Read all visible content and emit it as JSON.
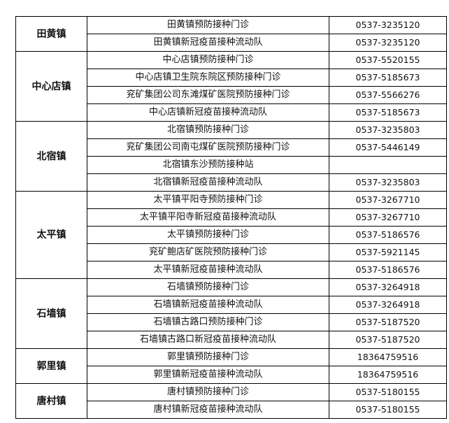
{
  "groups": [
    {
      "town": "田黄镇",
      "rows": [
        {
          "name": "田黄镇预防接种门诊",
          "phone": "0537-3235120"
        },
        {
          "name": "田黄镇新冠疫苗接种流动队",
          "phone": "0537-3235120"
        }
      ]
    },
    {
      "town": "中心店镇",
      "rows": [
        {
          "name": "中心店镇预防接种门诊",
          "phone": "0537-5520155"
        },
        {
          "name": "中心店镇卫生院东院区预防接种门诊",
          "phone": "0537-5185673"
        },
        {
          "name": "兖矿集团公司东滩煤矿医院预防接种门诊",
          "phone": "0537-5566276"
        },
        {
          "name": "中心店镇新冠疫苗接种流动队",
          "phone": "0537-5185673"
        }
      ]
    },
    {
      "town": "北宿镇",
      "rows": [
        {
          "name": "北宿镇预防接种门诊",
          "phone": "0537-3235803"
        },
        {
          "name": "兖矿集团公司南屯煤矿医院预防接种门诊",
          "phone": "0537-5446149"
        },
        {
          "name": "北宿镇东沙预防接种站",
          "phone": null
        },
        {
          "name": "北宿镇新冠疫苗接种流动队",
          "phone": "0537-3235803"
        }
      ]
    },
    {
      "town": "太平镇",
      "rows": [
        {
          "name": "太平镇平阳寺预防接种门诊",
          "phone": "0537-3267710"
        },
        {
          "name": "太平镇平阳寺新冠疫苗接种流动队",
          "phone": "0537-3267710"
        },
        {
          "name": "太平镇预防接种门诊",
          "phone": "0537-5186576"
        },
        {
          "name": "兖矿鲍店矿医院预防接种门诊",
          "phone": "0537-5921145"
        },
        {
          "name": "太平镇新冠疫苗接种流动队",
          "phone": "0537-5186576"
        }
      ]
    },
    {
      "town": "石墙镇",
      "rows": [
        {
          "name": "石墙镇预防接种门诊",
          "phone": "0537-3264918"
        },
        {
          "name": "石墙镇新冠疫苗接种流动队",
          "phone": "0537-3264918"
        },
        {
          "name": "石墙镇古路口预防接种门诊",
          "phone": "0537-5187520"
        },
        {
          "name": "石墙镇古路口新冠疫苗接种流动队",
          "phone": "0537-5187520"
        }
      ]
    },
    {
      "town": "郭里镇",
      "rows": [
        {
          "name": "郭里镇预防接种门诊",
          "phone": "18364759516"
        },
        {
          "name": "郭里镇新冠疫苗接种流动队",
          "phone": "18364759516"
        }
      ]
    },
    {
      "town": "唐村镇",
      "rows": [
        {
          "name": "唐村镇预防接种门诊",
          "phone": "0537-5180155"
        },
        {
          "name": "唐村镇新冠疫苗接种流动队",
          "phone": "0537-5180155"
        }
      ]
    }
  ]
}
